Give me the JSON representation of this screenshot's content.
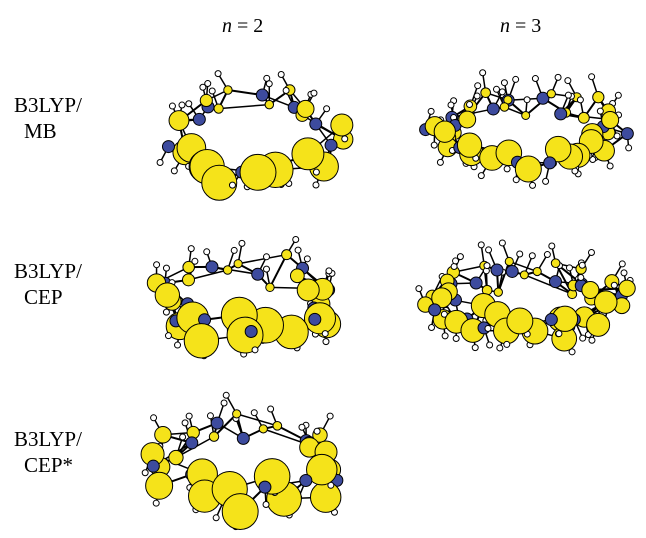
{
  "column_headers": [
    {
      "variable": "n",
      "value": "= 2"
    },
    {
      "variable": "n",
      "value": "= 3"
    }
  ],
  "rows": [
    {
      "method": "B3LYP/",
      "basis": "MB"
    },
    {
      "method": "B3LYP/",
      "basis": "CEP"
    },
    {
      "method": "B3LYP/",
      "basis": "CEP*"
    }
  ]
}
